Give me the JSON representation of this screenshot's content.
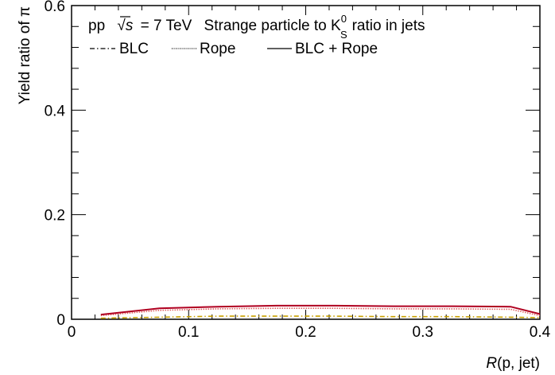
{
  "chart_data": {
    "type": "line",
    "title": {
      "collision": "pp",
      "energy_prefix": "√",
      "energy_var": "s",
      "energy_value": "= 7 TeV",
      "description_pre": "Strange particle to K",
      "description_sup": "0",
      "description_sub": "S",
      "description_post": "ratio in jets"
    },
    "xlabel_italic": "R",
    "xlabel_rest": "(p, jet)",
    "ylabel": "Yield ratio of π",
    "xlim": [
      0,
      0.4
    ],
    "ylim": [
      0,
      0.6
    ],
    "x_ticks": [
      "0",
      "0.1",
      "0.2",
      "0.3",
      "0.4"
    ],
    "y_ticks": [
      "0",
      "0.2",
      "0.4",
      "0.6"
    ],
    "legend": {
      "placement": "top-left",
      "entries": [
        {
          "label": "BLC",
          "style": "dash-dot"
        },
        {
          "label": "Rope",
          "style": "dotted"
        },
        {
          "label": "BLC + Rope",
          "style": "solid"
        }
      ]
    },
    "series": [
      {
        "name": "BLC",
        "color": "#c8a000",
        "style": "dash-dot",
        "x": [
          0.025,
          0.075,
          0.125,
          0.175,
          0.225,
          0.275,
          0.325,
          0.375,
          0.4
        ],
        "y": [
          0.002,
          0.004,
          0.006,
          0.006,
          0.006,
          0.005,
          0.005,
          0.004,
          0.003
        ]
      },
      {
        "name": "Rope",
        "color": "#e06060",
        "style": "dotted",
        "x": [
          0.025,
          0.075,
          0.125,
          0.175,
          0.225,
          0.275,
          0.325,
          0.375,
          0.4
        ],
        "y": [
          0.007,
          0.017,
          0.02,
          0.021,
          0.021,
          0.02,
          0.02,
          0.019,
          0.007
        ]
      },
      {
        "name": "BLC + Rope",
        "color": "#b00020",
        "style": "solid",
        "x": [
          0.025,
          0.075,
          0.125,
          0.175,
          0.225,
          0.275,
          0.325,
          0.375,
          0.4
        ],
        "y": [
          0.009,
          0.021,
          0.024,
          0.026,
          0.026,
          0.025,
          0.025,
          0.024,
          0.01
        ]
      }
    ],
    "minor_ticks_x_per_major": 5,
    "minor_ticks_y_per_major": 5,
    "grid": false
  }
}
